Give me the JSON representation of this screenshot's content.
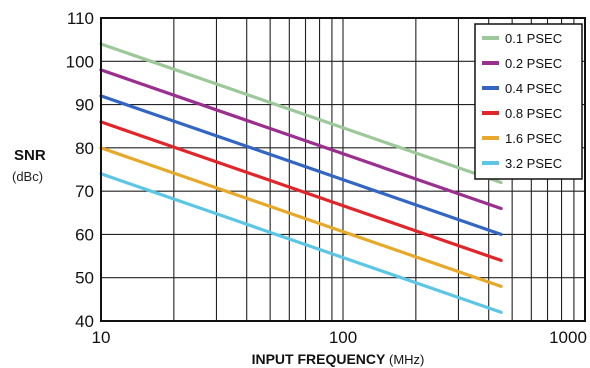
{
  "chart_data": {
    "type": "line",
    "xscale": "log",
    "xlim": [
      10,
      1000
    ],
    "ylim": [
      40,
      110
    ],
    "grid": true,
    "legend_position": "top-right",
    "ylabel": "SNR",
    "ylabel_unit": "(dBc)",
    "xlabel": "INPUT FREQUENCY",
    "xlabel_unit": "(MHz)",
    "x_ticks": [
      "10",
      "100",
      "1000"
    ],
    "y_ticks": [
      "40",
      "50",
      "60",
      "70",
      "80",
      "90",
      "100",
      "110"
    ],
    "x": [
      10,
      450
    ],
    "series": [
      {
        "name": "0.1 PSEC",
        "color": "#9cc89a",
        "values": [
          104,
          72
        ]
      },
      {
        "name": "0.2 PSEC",
        "color": "#9b2f8f",
        "values": [
          98,
          66
        ]
      },
      {
        "name": "0.4 PSEC",
        "color": "#3366c2",
        "values": [
          92,
          60
        ]
      },
      {
        "name": "0.8 PSEC",
        "color": "#e0262b",
        "values": [
          86,
          54
        ]
      },
      {
        "name": "1.6 PSEC",
        "color": "#e8a92a",
        "values": [
          80,
          48
        ]
      },
      {
        "name": "3.2 PSEC",
        "color": "#5cc6e6",
        "values": [
          74,
          42
        ]
      }
    ]
  }
}
